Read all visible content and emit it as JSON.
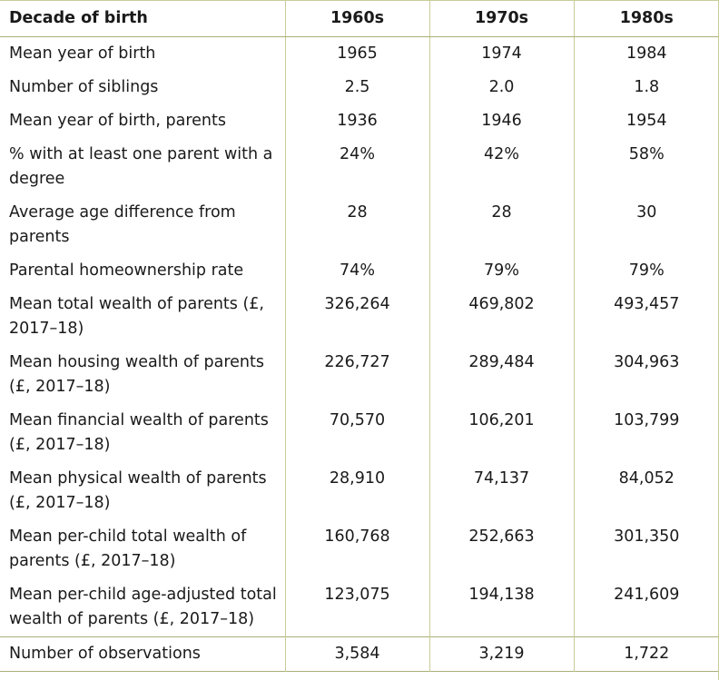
{
  "header": {
    "label": "Decade of birth",
    "columns": [
      "1960s",
      "1970s",
      "1980s"
    ]
  },
  "rows": [
    {
      "label": "Mean year of birth",
      "values": [
        "1965",
        "1974",
        "1984"
      ]
    },
    {
      "label": "Number of siblings",
      "values": [
        "2.5",
        "2.0",
        "1.8"
      ]
    },
    {
      "label": "Mean year of birth, parents",
      "values": [
        "1936",
        "1946",
        "1954"
      ]
    },
    {
      "label": "% with at least one parent with a degree",
      "values": [
        "24%",
        "42%",
        "58%"
      ]
    },
    {
      "label": "Average age difference from parents",
      "values": [
        "28",
        "28",
        "30"
      ]
    },
    {
      "label": "Parental homeownership rate",
      "values": [
        "74%",
        "79%",
        "79%"
      ]
    },
    {
      "label": "Mean total wealth of parents (£, 2017–18)",
      "values": [
        "326,264",
        "469,802",
        "493,457"
      ]
    },
    {
      "label": "Mean housing wealth of parents (£, 2017–18)",
      "values": [
        "226,727",
        "289,484",
        "304,963"
      ]
    },
    {
      "label": "Mean financial wealth of parents (£, 2017–18)",
      "values": [
        "70,570",
        "106,201",
        "103,799"
      ]
    },
    {
      "label": "Mean physical wealth of parents (£, 2017–18)",
      "values": [
        "28,910",
        "74,137",
        "84,052"
      ]
    },
    {
      "label": "Mean per-child total wealth of parents (£, 2017–18)",
      "values": [
        "160,768",
        "252,663",
        "301,350"
      ]
    },
    {
      "label": "Mean per-child age-adjusted total wealth of parents (£, 2017–18)",
      "values": [
        "123,075",
        "194,138",
        "241,609"
      ]
    }
  ],
  "footer": {
    "label": "Number of observations",
    "values": [
      "3,584",
      "3,219",
      "1,722"
    ]
  }
}
